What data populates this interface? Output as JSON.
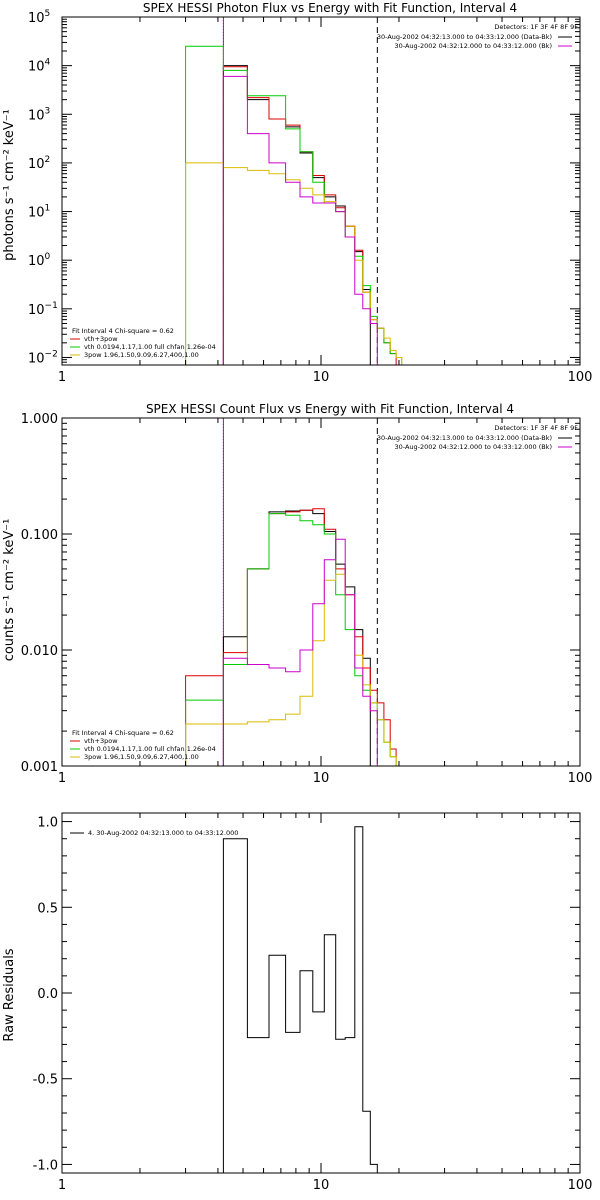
{
  "chart_data": [
    {
      "type": "line",
      "title": "SPEX HESSI Photon Flux vs Energy with Fit Function, Interval 4",
      "ylabel": "photons s⁻¹ cm⁻² keV⁻¹",
      "xscale": "log",
      "yscale": "log",
      "xlim": [
        1,
        100
      ],
      "ylim": [
        0.007,
        100000
      ],
      "xticks": [
        "1",
        "10",
        "100"
      ],
      "yticks": [
        {
          "base": "10",
          "exp": "5",
          "value": 100000
        },
        {
          "base": "10",
          "exp": "4",
          "value": 10000
        },
        {
          "base": "10",
          "exp": "3",
          "value": 1000
        },
        {
          "base": "10",
          "exp": "2",
          "value": 100
        },
        {
          "base": "10",
          "exp": "1",
          "value": 10
        },
        {
          "base": "10",
          "exp": "0",
          "value": 1
        },
        {
          "base": "10",
          "exp": "−1",
          "value": 0.1
        },
        {
          "base": "10",
          "exp": "−2",
          "value": 0.01
        }
      ],
      "vlines": [
        {
          "x": 4.2,
          "style": "dotted",
          "color": "#000000"
        },
        {
          "x": 4.2,
          "style": "solid",
          "color": "#cc00cc"
        },
        {
          "x": 16.5,
          "style": "dashed",
          "color": "#000000"
        }
      ],
      "detector_text": "Detectors: 1F 3F 4F 8F 9F",
      "time_legend": [
        {
          "text": "30-Aug-2002 04:32:13.000 to 04:33:12.000 (Data-Bk)",
          "color": "#000000"
        },
        {
          "text": "30-Aug-2002 04:32:12.000 to 04:33:12.000 (Bk)",
          "color": "#cc00cc"
        }
      ],
      "fit_header": "Fit Interval  4    Chi-square = 0.62",
      "fit_legend": [
        {
          "text": "vth+3pow",
          "color": "#dd0000"
        },
        {
          "text": "vth 0.0194,1.17,1.00  full chfan 1.26e-04",
          "color": "#00cc00"
        },
        {
          "text": "3pow 1.96,1.50,9.09,6.27,400,1.00",
          "color": "#ddbb00"
        }
      ],
      "edges": [
        3.0,
        4.2,
        5.2,
        6.3,
        7.3,
        8.3,
        9.3,
        10.3,
        11.4,
        12.4,
        13.5,
        14.5,
        15.5,
        16.5,
        17.5,
        18.5,
        19.5,
        20.5
      ],
      "series": [
        {
          "color": "#000000",
          "values": [
            null,
            10000,
            2000,
            800,
            550,
            160,
            50,
            20,
            13,
            5,
            1.5,
            0.25,
            null,
            null,
            null,
            null,
            null
          ]
        },
        {
          "color": "#dd0000",
          "values": [
            null,
            9500,
            2200,
            800,
            600,
            170,
            55,
            22,
            12,
            5,
            1.6,
            0.22,
            0.06,
            0.04,
            0.02,
            0.012,
            null
          ]
        },
        {
          "color": "#00cc00",
          "values": [
            25000,
            8000,
            2400,
            2400,
            500,
            170,
            40,
            15,
            10,
            3,
            1.2,
            0.3,
            0.07,
            0.04,
            0.02,
            0.012,
            0.01
          ]
        },
        {
          "color": "#ddbb00",
          "values": [
            100,
            80,
            70,
            60,
            45,
            30,
            22,
            16,
            10,
            5,
            1.0,
            0.22,
            0.06,
            0.04,
            0.025,
            0.014,
            0.01
          ]
        },
        {
          "color": "#cc00cc",
          "values": [
            null,
            6000,
            400,
            100,
            40,
            20,
            15,
            15,
            10,
            3,
            0.2,
            0.1,
            0.05,
            null,
            null,
            null,
            null
          ]
        }
      ]
    },
    {
      "type": "line",
      "title": "SPEX HESSI Count Flux vs Energy with Fit Function, Interval 4",
      "ylabel": "counts s⁻¹ cm⁻² keV⁻¹",
      "xscale": "log",
      "yscale": "log",
      "xlim": [
        1,
        100
      ],
      "ylim": [
        0.001,
        1.0
      ],
      "xticks": [
        "1",
        "10",
        "100"
      ],
      "yticks": [
        {
          "label": "1.000",
          "value": 1.0
        },
        {
          "label": "0.100",
          "value": 0.1
        },
        {
          "label": "0.010",
          "value": 0.01
        },
        {
          "label": "0.001",
          "value": 0.001
        }
      ],
      "vlines": [
        {
          "x": 4.2,
          "style": "dotted",
          "color": "#000000"
        },
        {
          "x": 4.2,
          "style": "solid",
          "color": "#cc00cc"
        },
        {
          "x": 16.5,
          "style": "dashed",
          "color": "#000000"
        }
      ],
      "detector_text": "Detectors: 1F 3F 4F 8F 9F",
      "time_legend": [
        {
          "text": "30-Aug-2002 04:32:13.000 to 04:33:12.000 (Data-Bk)",
          "color": "#000000"
        },
        {
          "text": "30-Aug-2002 04:32:12.000 to 04:33:12.000 (Bk)",
          "color": "#cc00cc"
        }
      ],
      "fit_header": "Fit Interval  4    Chi-square = 0.62",
      "fit_legend": [
        {
          "text": "vth+3pow",
          "color": "#dd0000"
        },
        {
          "text": "vth 0.0194,1.17,1.00  full chfan 1.26e-04",
          "color": "#00cc00"
        },
        {
          "text": "3pow 1.96,1.50,9.09,6.27,400,1.00",
          "color": "#ddbb00"
        }
      ],
      "edges": [
        3.0,
        4.2,
        5.2,
        6.3,
        7.3,
        8.3,
        9.3,
        10.3,
        11.4,
        12.4,
        13.5,
        14.5,
        15.5,
        16.5,
        17.5,
        18.5,
        19.5,
        20.5
      ],
      "series": [
        {
          "color": "#000000",
          "values": [
            null,
            0.013,
            0.05,
            0.155,
            0.158,
            0.16,
            0.15,
            0.105,
            0.055,
            0.035,
            0.015,
            0.0085,
            null,
            null,
            null,
            null,
            null
          ]
        },
        {
          "color": "#dd0000",
          "values": [
            0.006,
            0.0095,
            0.05,
            0.15,
            0.155,
            0.16,
            0.165,
            0.11,
            0.05,
            0.03,
            0.013,
            0.007,
            0.0045,
            0.0035,
            0.0025,
            0.0014,
            null
          ]
        },
        {
          "color": "#00cc00",
          "values": [
            0.0037,
            0.0075,
            0.05,
            0.15,
            0.145,
            0.13,
            0.12,
            0.1,
            0.03,
            0.015,
            0.006,
            0.0045,
            0.0035,
            0.0025,
            0.0016,
            0.0012,
            null
          ]
        },
        {
          "color": "#ddbb00",
          "values": [
            0.0023,
            0.0023,
            0.0024,
            0.0025,
            0.0028,
            0.004,
            0.012,
            0.04,
            0.045,
            0.03,
            0.009,
            0.005,
            0.0035,
            0.0025,
            0.0016,
            0.0012,
            null
          ]
        },
        {
          "color": "#cc00cc",
          "values": [
            null,
            0.0085,
            0.0075,
            0.007,
            0.0065,
            0.01,
            0.025,
            0.06,
            0.09,
            0.03,
            0.007,
            0.004,
            0.003,
            null,
            null,
            null,
            null
          ]
        }
      ]
    },
    {
      "type": "line",
      "title": "",
      "ylabel": "Raw Residuals",
      "xscale": "log",
      "yscale": "linear",
      "xlim": [
        1,
        100
      ],
      "ylim": [
        -1.05,
        1.05
      ],
      "xticks": [
        "1",
        "10",
        "100"
      ],
      "yticks": [
        {
          "label": "1.0",
          "value": 1.0
        },
        {
          "label": "0.5",
          "value": 0.5
        },
        {
          "label": "0.0",
          "value": 0.0
        },
        {
          "label": "-0.5",
          "value": -0.5
        },
        {
          "label": "-1.0",
          "value": -1.0
        }
      ],
      "legend": [
        {
          "text": "4. 30-Aug-2002 04:32:13.000 to 04:33:12.000",
          "color": "#000000"
        }
      ],
      "edges": [
        4.2,
        5.2,
        6.3,
        7.3,
        8.3,
        9.3,
        10.3,
        11.4,
        12.4,
        13.5,
        14.5,
        15.5,
        16.5
      ],
      "series": [
        {
          "color": "#000000",
          "values": [
            0.9,
            -0.26,
            0.22,
            -0.23,
            0.13,
            -0.11,
            0.34,
            -0.27,
            -0.26,
            0.97,
            -0.69,
            -1.0
          ]
        }
      ]
    }
  ]
}
